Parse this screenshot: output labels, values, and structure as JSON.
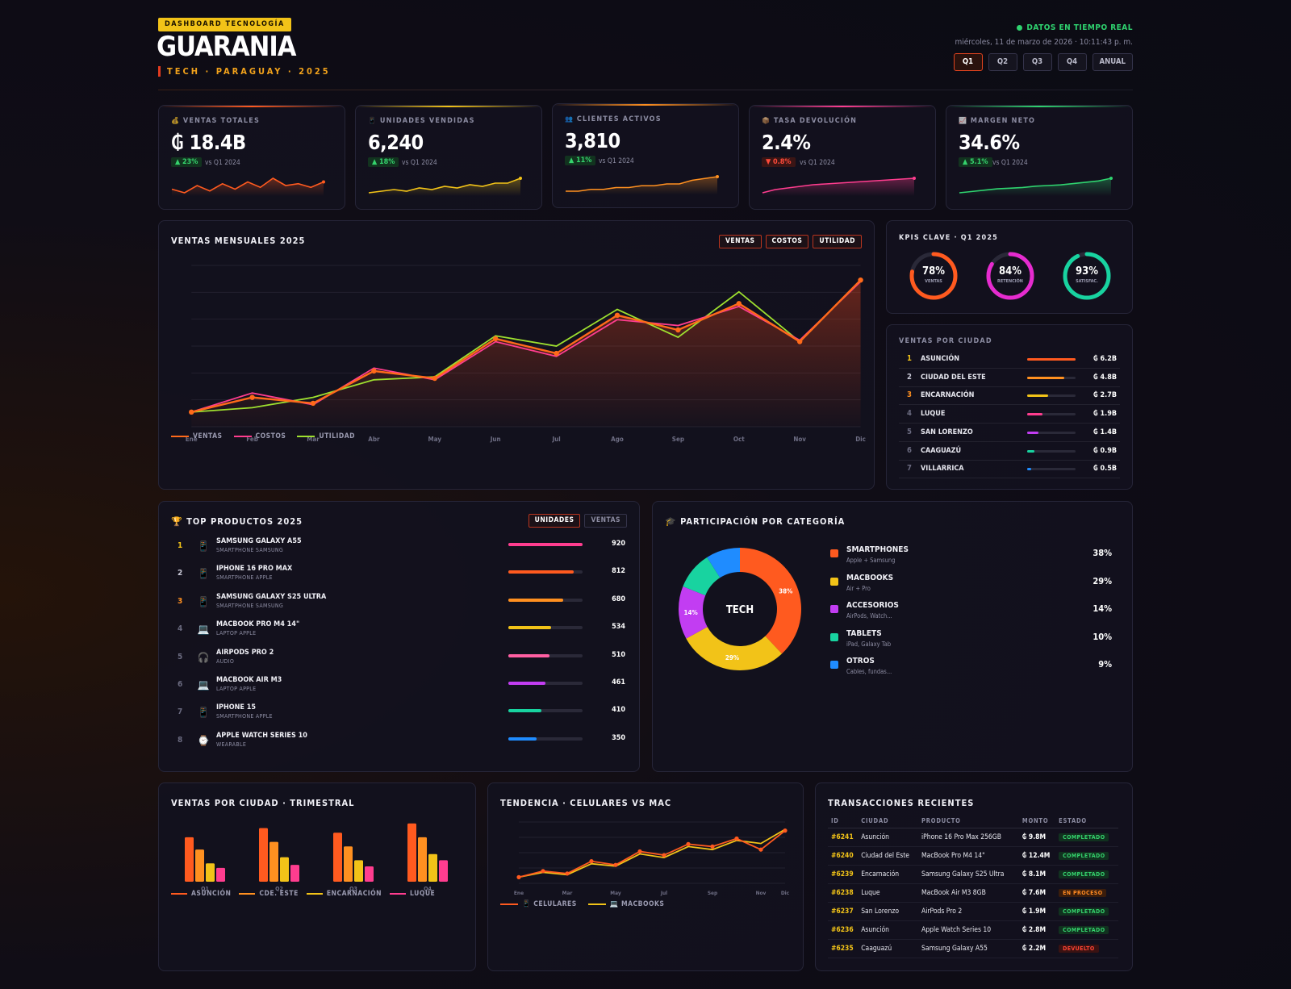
{
  "header": {
    "badge": "DASHBOARD TECNOLOGÍA",
    "brand": "GUARANIA",
    "subtitle": "TECH · PARAGUAY · 2025",
    "live": "DATOS EN TIEMPO REAL",
    "datetime": "miércoles, 11 de marzo de 2026 · 10:11:43 p. m.",
    "periods": [
      "Q1",
      "Q2",
      "Q3",
      "Q4",
      "ANUAL"
    ],
    "active_period": "Q1"
  },
  "kpis": [
    {
      "label": "VENTAS TOTALES",
      "icon": "money-bag-icon",
      "value": "₲ 18.4B",
      "delta": "▲ 23%",
      "direction": "up",
      "vs": "vs Q1 2024",
      "color": "#ff5a1f",
      "spark": [
        6,
        4,
        8,
        5,
        9,
        6,
        10,
        7,
        12,
        8,
        9,
        7,
        10
      ]
    },
    {
      "label": "UNIDADES VENDIDAS",
      "icon": "phone-icon",
      "value": "6,240",
      "delta": "▲ 18%",
      "direction": "up",
      "vs": "vs Q1 2024",
      "color": "#f2c318",
      "spark": [
        3,
        4,
        5,
        4,
        6,
        5,
        7,
        6,
        8,
        7,
        9,
        9,
        12
      ]
    },
    {
      "label": "CLIENTES ACTIVOS",
      "icon": "users-icon",
      "value": "3,810",
      "delta": "▲ 11%",
      "direction": "up",
      "vs": "vs Q1 2024",
      "color": "#ff9020",
      "spark": [
        3,
        3,
        4,
        4,
        5,
        5,
        6,
        6,
        7,
        7,
        9,
        10,
        11
      ]
    },
    {
      "label": "TASA DEVOLUCIÓN",
      "icon": "box-icon",
      "value": "2.4%",
      "delta": "▼ 0.8%",
      "direction": "down",
      "vs": "vs Q1 2024",
      "color": "#ff3d8f",
      "spark": [
        2,
        4,
        5,
        6,
        7,
        7.5,
        8,
        8.5,
        9,
        9.5,
        10,
        10.5,
        11
      ]
    },
    {
      "label": "MARGEN NETO",
      "icon": "chart-icon",
      "value": "34.6%",
      "delta": "▲ 5.1%",
      "direction": "up",
      "vs": "vs Q1 2024",
      "color": "#2fd36f",
      "spark": [
        2,
        3,
        4,
        5,
        5.5,
        6,
        7,
        7.5,
        8,
        9,
        10,
        11,
        13
      ]
    }
  ],
  "monthly": {
    "title": "VENTAS MENSUALES 2025",
    "toggles": [
      "VENTAS",
      "COSTOS",
      "UTILIDAD"
    ],
    "chart_data": {
      "type": "line",
      "categories": [
        "Ene",
        "Feb",
        "Mar",
        "Abr",
        "May",
        "Jun",
        "Jul",
        "Ago",
        "Sep",
        "Oct",
        "Nov",
        "Dic"
      ],
      "series": [
        {
          "name": "VENTAS",
          "color": "#ff6a1a",
          "values": [
            1.0,
            2.0,
            1.6,
            3.8,
            3.3,
            6.0,
            5.0,
            7.6,
            6.6,
            8.4,
            5.8,
            10.0
          ]
        },
        {
          "name": "COSTOS",
          "color": "#ff3d8f",
          "values": [
            1.0,
            2.3,
            1.5,
            4.0,
            3.2,
            5.8,
            4.8,
            7.3,
            6.9,
            8.2,
            5.9,
            9.9
          ]
        },
        {
          "name": "UTILIDAD",
          "color": "#9ee02f",
          "values": [
            1.0,
            1.3,
            2.0,
            3.2,
            3.4,
            6.2,
            5.5,
            8.0,
            6.1,
            9.2,
            5.8,
            10.0
          ]
        }
      ],
      "ylim": [
        0,
        11
      ]
    }
  },
  "gauges": {
    "title": "KPIS CLAVE · Q1 2025",
    "items": [
      {
        "value": "78%",
        "pct": 0.78,
        "label": "VENTAS",
        "color": "#ff5a1f"
      },
      {
        "value": "84%",
        "pct": 0.84,
        "label": "RETENCIÓN",
        "color": "#e62bcf"
      },
      {
        "value": "93%",
        "pct": 0.93,
        "label": "SATISFAC.",
        "color": "#18d3a0"
      }
    ]
  },
  "cities": {
    "title": "VENTAS POR CIUDAD",
    "rows": [
      {
        "rank": "1",
        "name": "ASUNCIÓN",
        "amount": "₲ 6.2B",
        "pct": 1.0,
        "color": "#ff5a1f",
        "rank_color": "#f2c318"
      },
      {
        "rank": "2",
        "name": "CIUDAD DEL ESTE",
        "amount": "₲ 4.8B",
        "pct": 0.77,
        "color": "#ff9020",
        "rank_color": "#c8c8d6"
      },
      {
        "rank": "3",
        "name": "ENCARNACIÓN",
        "amount": "₲ 2.7B",
        "pct": 0.44,
        "color": "#f2c318",
        "rank_color": "#ff9020"
      },
      {
        "rank": "4",
        "name": "LUQUE",
        "amount": "₲ 1.9B",
        "pct": 0.31,
        "color": "#ff3d8f",
        "rank_color": "#6b6b80"
      },
      {
        "rank": "5",
        "name": "SAN LORENZO",
        "amount": "₲ 1.4B",
        "pct": 0.23,
        "color": "#c23df2",
        "rank_color": "#6b6b80"
      },
      {
        "rank": "6",
        "name": "CAAGUAZÚ",
        "amount": "₲ 0.9B",
        "pct": 0.15,
        "color": "#18d3a0",
        "rank_color": "#6b6b80"
      },
      {
        "rank": "7",
        "name": "VILLARRICA",
        "amount": "₲ 0.5B",
        "pct": 0.08,
        "color": "#1f8cff",
        "rank_color": "#6b6b80"
      }
    ]
  },
  "products": {
    "title": "TOP PRODUCTOS 2025",
    "toggles": [
      "UNIDADES",
      "VENTAS"
    ],
    "rows": [
      {
        "rank": "1",
        "icon": "phone-icon",
        "name": "SAMSUNG GALAXY A55",
        "cat": "SMARTPHONE SAMSUNG",
        "value": "920",
        "pct": 1.0,
        "color": "#ff3d8f",
        "rank_color": "#f2c318"
      },
      {
        "rank": "2",
        "icon": "phone-icon",
        "name": "IPHONE 16 PRO MAX",
        "cat": "SMARTPHONE APPLE",
        "value": "812",
        "pct": 0.88,
        "color": "#ff5a1f",
        "rank_color": "#c8c8d6"
      },
      {
        "rank": "3",
        "icon": "phone-icon",
        "name": "SAMSUNG GALAXY S25 ULTRA",
        "cat": "SMARTPHONE SAMSUNG",
        "value": "680",
        "pct": 0.74,
        "color": "#ff9020",
        "rank_color": "#ff9020"
      },
      {
        "rank": "4",
        "icon": "laptop-icon",
        "name": "MACBOOK PRO M4 14\"",
        "cat": "LAPTOP APPLE",
        "value": "534",
        "pct": 0.58,
        "color": "#f2c318",
        "rank_color": "#6b6b80"
      },
      {
        "rank": "5",
        "icon": "headphones-icon",
        "name": "AIRPODS PRO 2",
        "cat": "AUDIO",
        "value": "510",
        "pct": 0.55,
        "color": "#ff5fa2",
        "rank_color": "#6b6b80"
      },
      {
        "rank": "6",
        "icon": "laptop-icon",
        "name": "MACBOOK AIR M3",
        "cat": "LAPTOP APPLE",
        "value": "461",
        "pct": 0.5,
        "color": "#c23df2",
        "rank_color": "#6b6b80"
      },
      {
        "rank": "7",
        "icon": "phone-icon",
        "name": "IPHONE 15",
        "cat": "SMARTPHONE APPLE",
        "value": "410",
        "pct": 0.45,
        "color": "#18d3a0",
        "rank_color": "#6b6b80"
      },
      {
        "rank": "8",
        "icon": "watch-icon",
        "name": "APPLE WATCH SERIES 10",
        "cat": "WEARABLE",
        "value": "350",
        "pct": 0.38,
        "color": "#1f8cff",
        "rank_color": "#6b6b80"
      }
    ]
  },
  "categories": {
    "title": "PARTICIPACIÓN POR CATEGORÍA",
    "center": "TECH",
    "chart_data": {
      "type": "pie",
      "slices": [
        {
          "name": "SMARTPHONES",
          "sub": "Apple + Samsung",
          "value": 38,
          "label": "38%",
          "color": "#ff5a1f"
        },
        {
          "name": "MACBOOKS",
          "sub": "Air + Pro",
          "value": 29,
          "label": "29%",
          "color": "#f2c318"
        },
        {
          "name": "ACCESORIOS",
          "sub": "AirPods, Watch...",
          "value": 14,
          "label": "14%",
          "color": "#c23df2"
        },
        {
          "name": "TABLETS",
          "sub": "iPad, Galaxy Tab",
          "value": 10,
          "label": "10%",
          "color": "#18d3a0"
        },
        {
          "name": "OTROS",
          "sub": "Cables, fundas...",
          "value": 9,
          "label": "9%",
          "color": "#1f8cff"
        }
      ]
    }
  },
  "quarterly": {
    "title": "VENTAS POR CIUDAD · TRIMESTRAL",
    "chart_data": {
      "type": "bar",
      "categories": [
        "Q1",
        "Q2",
        "Q3",
        "Q4"
      ],
      "series": [
        {
          "name": "ASUNCIÓN",
          "color": "#ff5a1f",
          "values": [
            1.45,
            1.75,
            1.6,
            1.9
          ]
        },
        {
          "name": "CDE. ESTE",
          "color": "#ff9020",
          "values": [
            1.05,
            1.3,
            1.15,
            1.45
          ]
        },
        {
          "name": "ENCARNACIÓN",
          "color": "#f2c318",
          "values": [
            0.6,
            0.8,
            0.7,
            0.9
          ]
        },
        {
          "name": "LUQUE",
          "color": "#ff3d8f",
          "values": [
            0.45,
            0.55,
            0.5,
            0.7
          ]
        }
      ],
      "ylim": [
        0,
        2
      ]
    }
  },
  "trend": {
    "title": "TENDENCIA · CELULARES VS MAC",
    "chart_data": {
      "type": "line",
      "x": [
        "Ene",
        "",
        "Mar",
        "",
        "May",
        "",
        "Jul",
        "",
        "Sep",
        "",
        "Nov",
        "Dic"
      ],
      "series": [
        {
          "name": "📱 CELULARES",
          "color": "#ff5a1f",
          "values": [
            1.0,
            2.0,
            1.6,
            3.6,
            3.0,
            5.2,
            4.6,
            6.4,
            6.0,
            7.3,
            5.5,
            8.6
          ]
        },
        {
          "name": "💻 MACBOOKS",
          "color": "#f2c318",
          "values": [
            1.0,
            1.8,
            1.4,
            3.2,
            2.8,
            4.8,
            4.2,
            6.0,
            5.5,
            7.0,
            6.5,
            8.8
          ]
        }
      ],
      "ylim": [
        0,
        10
      ]
    }
  },
  "transactions": {
    "title": "TRANSACCIONES RECIENTES",
    "columns": [
      "ID",
      "CIUDAD",
      "PRODUCTO",
      "MONTO",
      "ESTADO"
    ],
    "rows": [
      {
        "id": "#6241",
        "city": "Asunción",
        "product": "iPhone 16 Pro Max 256GB",
        "amount": "₲ 9.8M",
        "status": "COMPLETADO",
        "kind": "ok"
      },
      {
        "id": "#6240",
        "city": "Ciudad del Este",
        "product": "MacBook Pro M4 14\"",
        "amount": "₲ 12.4M",
        "status": "COMPLETADO",
        "kind": "ok"
      },
      {
        "id": "#6239",
        "city": "Encarnación",
        "product": "Samsung Galaxy S25 Ultra",
        "amount": "₲ 8.1M",
        "status": "COMPLETADO",
        "kind": "ok"
      },
      {
        "id": "#6238",
        "city": "Luque",
        "product": "MacBook Air M3 8GB",
        "amount": "₲ 7.6M",
        "status": "EN PROCESO",
        "kind": "pr"
      },
      {
        "id": "#6237",
        "city": "San Lorenzo",
        "product": "AirPods Pro 2",
        "amount": "₲ 1.9M",
        "status": "COMPLETADO",
        "kind": "ok"
      },
      {
        "id": "#6236",
        "city": "Asunción",
        "product": "Apple Watch Series 10",
        "amount": "₲ 2.8M",
        "status": "COMPLETADO",
        "kind": "ok"
      },
      {
        "id": "#6235",
        "city": "Caaguazú",
        "product": "Samsung Galaxy A55",
        "amount": "₲ 2.2M",
        "status": "DEVUELTO",
        "kind": "dv"
      }
    ]
  }
}
